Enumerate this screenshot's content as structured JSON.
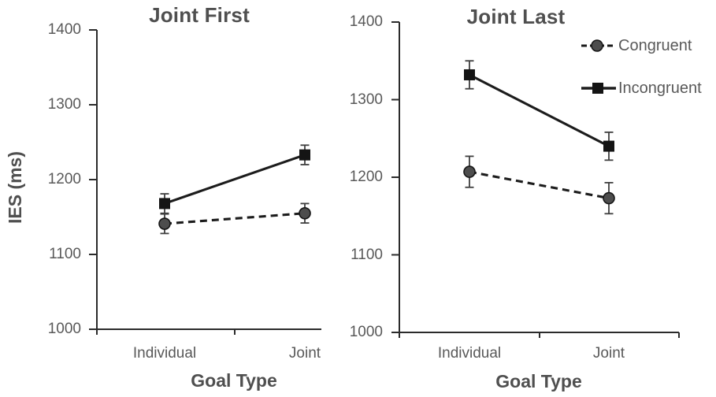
{
  "chart_data": [
    {
      "type": "line",
      "title": "Joint First",
      "xlabel": "Goal Type",
      "ylabel": "IES (ms)",
      "categories": [
        "Individual",
        "Joint"
      ],
      "ylim": [
        1000,
        1400
      ],
      "yticks": [
        1000,
        1100,
        1200,
        1300,
        1400
      ],
      "grid": false,
      "series": [
        {
          "name": "Congruent",
          "style": "dashed",
          "marker": "circle",
          "values": [
            1141,
            1155
          ],
          "errors": [
            13,
            13
          ]
        },
        {
          "name": "Incongruent",
          "style": "solid",
          "marker": "square",
          "values": [
            1168,
            1233
          ],
          "errors": [
            13,
            13
          ]
        }
      ]
    },
    {
      "type": "line",
      "title": "Joint Last",
      "xlabel": "Goal Type",
      "ylabel": "IES (ms)",
      "categories": [
        "Individual",
        "Joint"
      ],
      "ylim": [
        1000,
        1400
      ],
      "yticks": [
        1000,
        1100,
        1200,
        1300,
        1400
      ],
      "grid": false,
      "legend": {
        "position": "top-right",
        "items": [
          "Congruent",
          "Incongruent"
        ]
      },
      "series": [
        {
          "name": "Congruent",
          "style": "dashed",
          "marker": "circle",
          "values": [
            1207,
            1173
          ],
          "errors": [
            20,
            20
          ]
        },
        {
          "name": "Incongruent",
          "style": "solid",
          "marker": "square",
          "values": [
            1332,
            1240
          ],
          "errors": [
            18,
            18
          ]
        }
      ]
    }
  ],
  "colors": {
    "text": "#595959",
    "title": "#4f4f4f",
    "axis": "#2b2b2b",
    "line": "#1c1c1c",
    "circle_marker_fill": "#4d4d4d",
    "square_marker_fill": "#141414",
    "error_bar": "#3f3f3f",
    "background": "#ffffff"
  }
}
